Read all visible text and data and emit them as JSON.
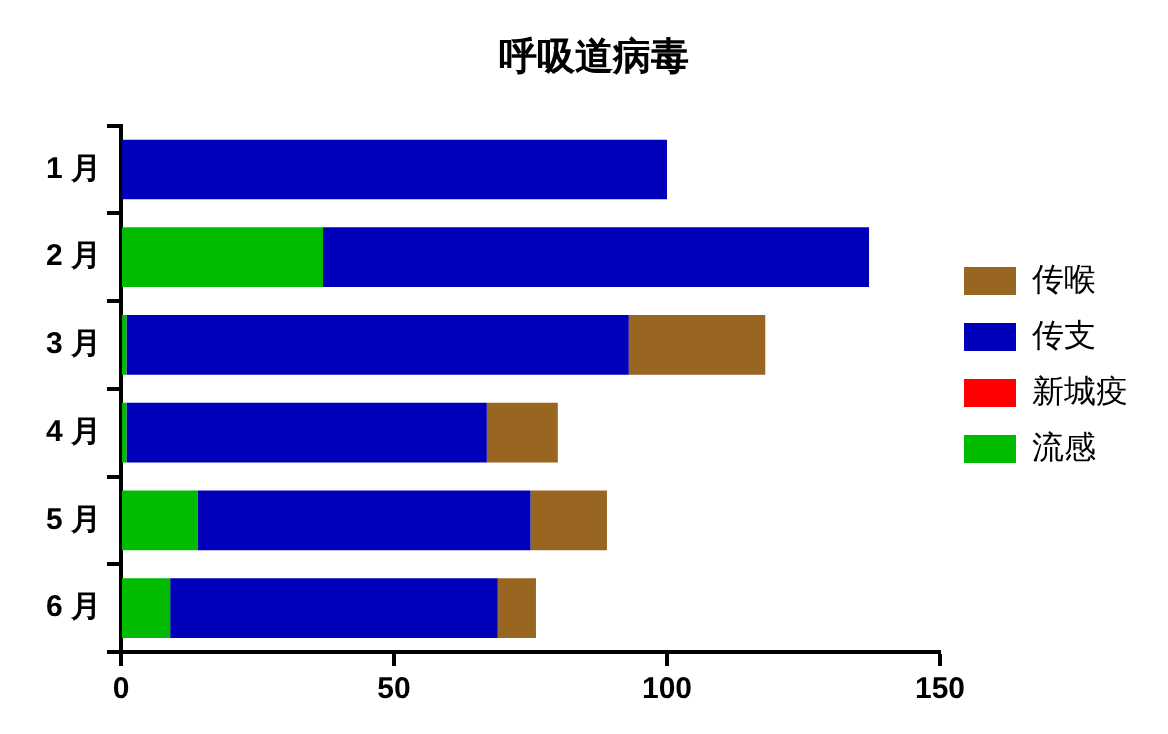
{
  "chart_data": {
    "type": "bar",
    "orientation": "horizontal",
    "stacked": true,
    "title": "呼吸道病毒",
    "categories": [
      "1 月",
      "2 月",
      "3 月",
      "4 月",
      "5 月",
      "6 月"
    ],
    "series": [
      {
        "name": "流感",
        "color": "#00bb00",
        "values": [
          0,
          37,
          1,
          1,
          14,
          9
        ]
      },
      {
        "name": "新城疫",
        "color": "#ff0000",
        "values": [
          0,
          0,
          0,
          0,
          0,
          0
        ]
      },
      {
        "name": "传支",
        "color": "#0000bb",
        "values": [
          100,
          100,
          92,
          66,
          61,
          60
        ]
      },
      {
        "name": "传喉",
        "color": "#996622",
        "values": [
          0,
          0,
          25,
          13,
          14,
          7
        ]
      }
    ],
    "xlim": [
      0,
      150
    ],
    "xticks": [
      0,
      50,
      100,
      150
    ],
    "grid": false,
    "legend": "right"
  }
}
